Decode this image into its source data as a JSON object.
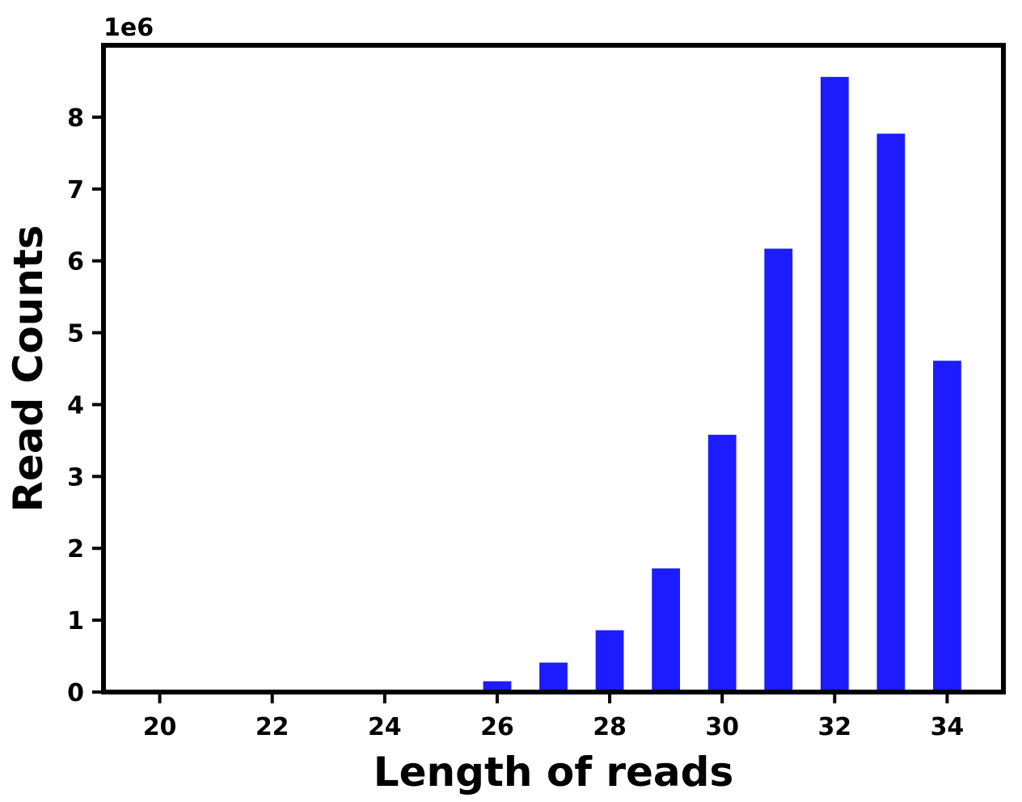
{
  "chart_data": {
    "type": "bar",
    "x": [
      20,
      21,
      22,
      23,
      24,
      25,
      26,
      27,
      28,
      29,
      30,
      31,
      32,
      33,
      34
    ],
    "values": [
      0,
      0,
      0,
      0,
      0,
      30000,
      150000,
      410000,
      860000,
      1720000,
      3580000,
      6170000,
      8560000,
      7770000,
      4610000
    ],
    "xlabel": "Length of reads",
    "ylabel": "Read Counts",
    "y_offset_label": "1e6",
    "y_scale": 1000000,
    "xlim": [
      19,
      35
    ],
    "ylim": [
      0,
      9000000
    ],
    "x_ticks": [
      20,
      22,
      24,
      26,
      28,
      30,
      32,
      34
    ],
    "y_ticks": [
      0,
      1,
      2,
      3,
      4,
      5,
      6,
      7,
      8
    ],
    "bar_width": 0.5,
    "bar_color": "#1c1cff",
    "grid": false,
    "legend": "none"
  }
}
